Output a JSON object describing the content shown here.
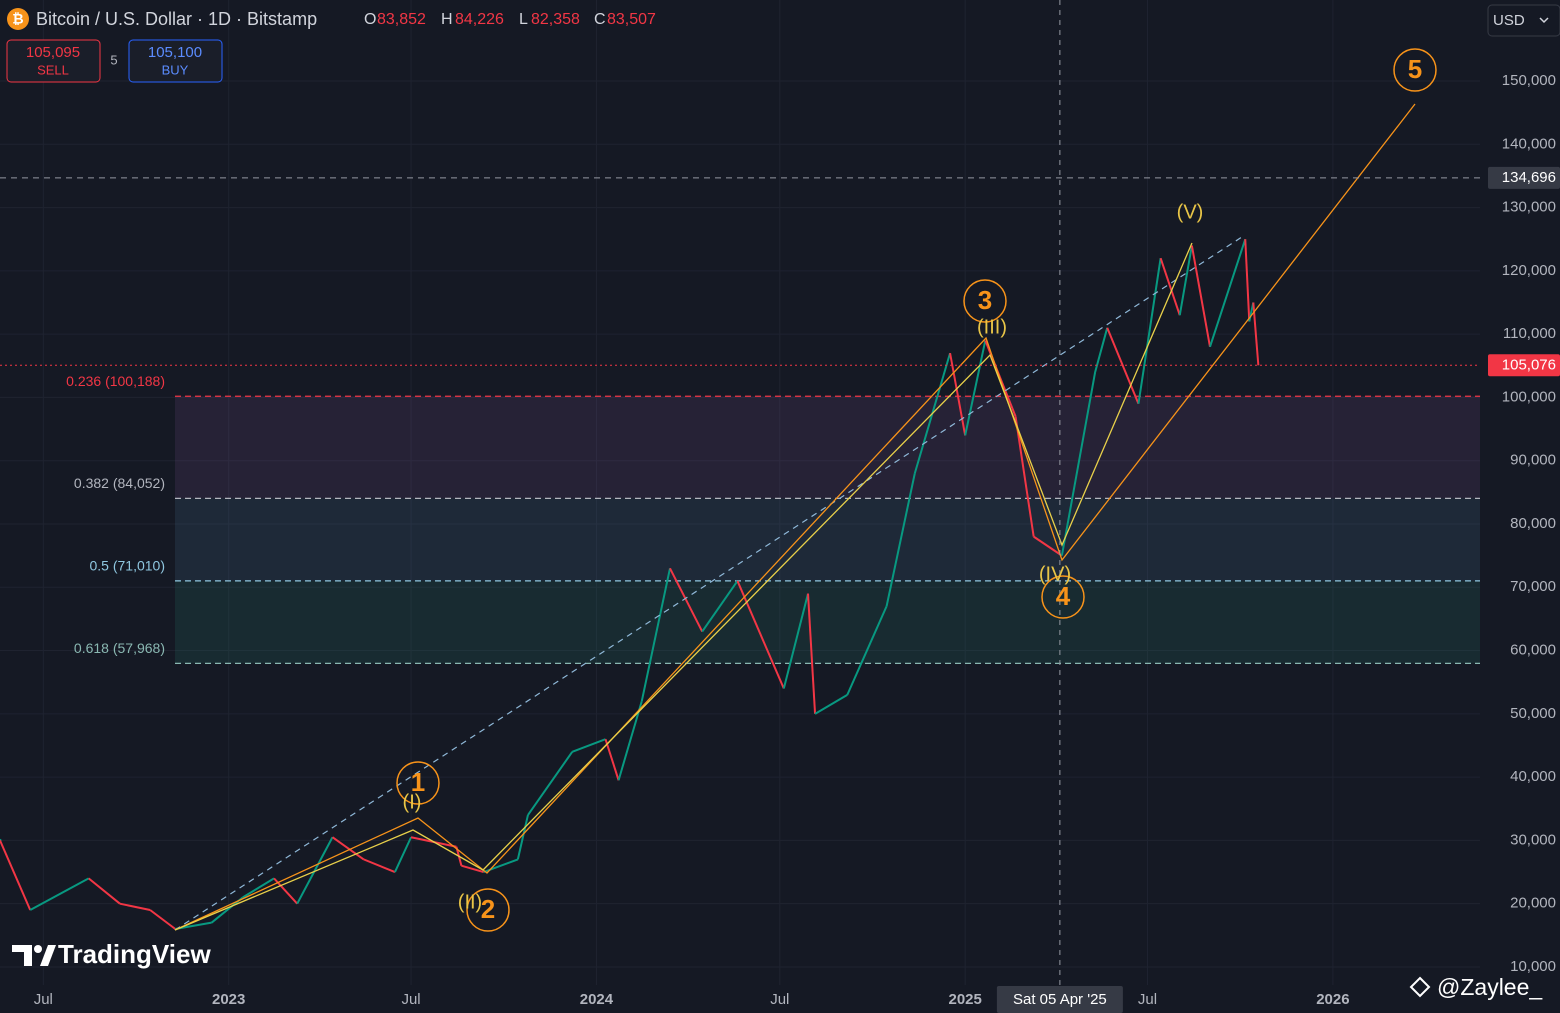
{
  "header": {
    "icon": "₿",
    "title": "Bitcoin / U.S. Dollar · 1D · Bitstamp",
    "ohlc": [
      {
        "key": "O",
        "value": "83,852"
      },
      {
        "key": "H",
        "value": "84,226"
      },
      {
        "key": "L",
        "value": "82,358"
      },
      {
        "key": "C",
        "value": "83,507"
      }
    ],
    "sell": {
      "price": "105,095",
      "label": "SELL"
    },
    "spread": "5",
    "buy": {
      "price": "105,100",
      "label": "BUY"
    },
    "currency": "USD"
  },
  "chart_data": {
    "type": "line",
    "xlim": [
      "2022-05-19",
      "2026-05-27"
    ],
    "ylim": [
      7150,
      162800
    ],
    "xticks": [
      {
        "value": "2022-07-01",
        "label": "Jul"
      },
      {
        "value": "2023-01-01",
        "label": "2023"
      },
      {
        "value": "2023-07-01",
        "label": "Jul"
      },
      {
        "value": "2024-01-01",
        "label": "2024"
      },
      {
        "value": "2024-07-01",
        "label": "Jul"
      },
      {
        "value": "2025-01-01",
        "label": "2025"
      },
      {
        "value": "2025-07-01",
        "label": "Jul"
      },
      {
        "value": "2026-01-01",
        "label": "2026"
      }
    ],
    "yticks": [
      {
        "value": 10000,
        "label": "10,000"
      },
      {
        "value": 20000,
        "label": "20,000"
      },
      {
        "value": 30000,
        "label": "30,000"
      },
      {
        "value": 40000,
        "label": "40,000"
      },
      {
        "value": 50000,
        "label": "50,000"
      },
      {
        "value": 60000,
        "label": "60,000"
      },
      {
        "value": 70000,
        "label": "70,000"
      },
      {
        "value": 80000,
        "label": "80,000"
      },
      {
        "value": 90000,
        "label": "90,000"
      },
      {
        "value": 100000,
        "label": "100,000"
      },
      {
        "value": 110000,
        "label": "110,000"
      },
      {
        "value": 120000,
        "label": "120,000"
      },
      {
        "value": 130000,
        "label": "130,000"
      },
      {
        "value": 140000,
        "label": "140,000"
      },
      {
        "value": 150000,
        "label": "150,000"
      }
    ],
    "grid": true,
    "colors": {
      "up": "#089981",
      "down": "#f23645"
    },
    "x": [
      "2022-05-19",
      "2022-06-18",
      "2022-08-15",
      "2022-09-15",
      "2022-10-15",
      "2022-11-09",
      "2022-12-15",
      "2023-01-15",
      "2023-02-15",
      "2023-03-10",
      "2023-04-14",
      "2023-05-15",
      "2023-06-15",
      "2023-07-01",
      "2023-08-15",
      "2023-08-20",
      "2023-09-11",
      "2023-10-15",
      "2023-10-25",
      "2023-12-08",
      "2024-01-10",
      "2024-01-23",
      "2024-02-15",
      "2024-03-14",
      "2024-04-15",
      "2024-05-20",
      "2024-07-05",
      "2024-07-29",
      "2024-08-05",
      "2024-09-06",
      "2024-10-15",
      "2024-11-12",
      "2024-12-17",
      "2025-01-01",
      "2025-01-21",
      "2025-02-20",
      "2025-03-10",
      "2025-04-07",
      "2025-05-10",
      "2025-05-22",
      "2025-06-22",
      "2025-07-14",
      "2025-08-02",
      "2025-08-14",
      "2025-09-01",
      "2025-10-06",
      "2025-10-10",
      "2025-10-14",
      "2025-10-19"
    ],
    "values": [
      30000,
      19000,
      24000,
      20000,
      19000,
      16000,
      17000,
      21000,
      24000,
      20000,
      30500,
      27000,
      25000,
      30500,
      29000,
      26000,
      25000,
      27000,
      34000,
      44000,
      46000,
      39500,
      52000,
      73000,
      63000,
      71000,
      54000,
      69000,
      50000,
      53000,
      67000,
      88000,
      107000,
      94000,
      109000,
      97000,
      78000,
      75000,
      104000,
      111000,
      99000,
      122000,
      113000,
      124000,
      108000,
      125000,
      112000,
      115000,
      105076
    ],
    "price_markers": [
      {
        "value": 134696,
        "label": "134,696",
        "color": "#363a45",
        "line": "#9598a1"
      },
      {
        "value": 105076,
        "label": "105,076",
        "color": "#f23645",
        "line": "#f23645"
      }
    ],
    "fib_levels": [
      {
        "value": 100188,
        "label": "0.236 (100,188)",
        "color": "#f23645"
      },
      {
        "value": 84052,
        "label": "0.382 (84,052)",
        "color": "#b2b5be"
      },
      {
        "value": 71010,
        "label": "0.5 (71,010)",
        "color": "#8fc7e0"
      },
      {
        "value": 57968,
        "label": "0.618 (57,968)",
        "color": "#8ab8b2"
      }
    ],
    "crosshair": {
      "value": "2025-04-05",
      "label": "Sat 05 Apr '25"
    },
    "waves": [
      "1",
      "2",
      "3",
      "4",
      "5"
    ],
    "sub_waves": [
      "(I)",
      "(II)",
      "(III)",
      "(IV)",
      "(V)"
    ]
  },
  "branding": {
    "logo": "TradingView",
    "watermark": "@Zaylee_"
  }
}
